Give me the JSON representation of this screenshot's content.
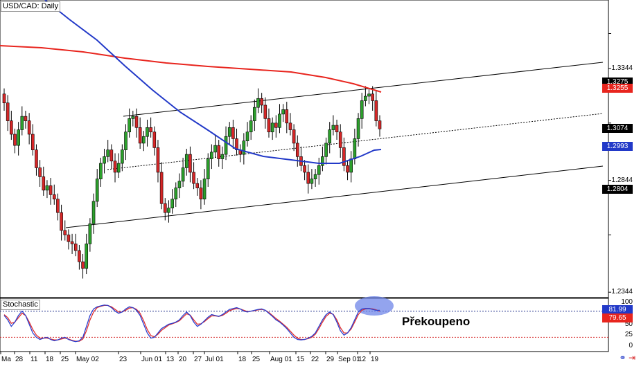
{
  "chart_title": "USD/CAD: Daily",
  "stoch_title": "Stochastic",
  "annotation": "Překoupeno",
  "colors": {
    "bull": "#2ca02c",
    "bear": "#d62728",
    "ma_red": "#e8251e",
    "ma_blue": "#2239c8",
    "stoch_red": "#e03030",
    "stoch_blue": "#2a3fd0",
    "highlight": "#6f86e8",
    "tag_black": "#000000",
    "tag_red": "#e8251e",
    "tag_blue": "#2239c8"
  },
  "chart_data": {
    "type": "candlestick",
    "price_axis_labels": [
      "1.3344",
      "1.2844",
      "1.2344"
    ],
    "price_tags": [
      {
        "value": "1.3275",
        "color": "#000000",
        "y_price": 1.3282
      },
      {
        "value": "1.3255",
        "color": "#e8251e",
        "y_price": 1.3255
      },
      {
        "value": "1.3074",
        "color": "#000000",
        "y_price": 1.3074
      },
      {
        "value": "1.2993",
        "color": "#2239c8",
        "y_price": 1.2993
      },
      {
        "value": "1.2804",
        "color": "#000000",
        "y_price": 1.2804
      }
    ],
    "x_tick_labels": [
      "Ma",
      "28",
      "11",
      "18",
      "25",
      "May 02",
      "23",
      "Jun 01",
      "13",
      "20",
      "27",
      "Jul 01",
      "18",
      "25",
      "Aug 01",
      "15",
      "22",
      "29",
      "Sep 01",
      "12",
      "19"
    ],
    "stoch_axis_labels": [
      "100",
      "75",
      "50",
      "25",
      "0"
    ],
    "stoch_tags": [
      {
        "value": "81.99",
        "color": "#2239c8"
      },
      {
        "value": "79.65",
        "color": "#e8251e"
      }
    ],
    "stoch_levels": {
      "overbought": 80,
      "oversold": 20
    },
    "closes": [
      1.319,
      1.311,
      1.305,
      1.3,
      1.307,
      1.313,
      1.311,
      1.305,
      1.298,
      1.29,
      1.286,
      1.28,
      1.282,
      1.278,
      1.276,
      1.27,
      1.262,
      1.26,
      1.257,
      1.256,
      1.253,
      1.248,
      1.245,
      1.256,
      1.265,
      1.275,
      1.285,
      1.292,
      1.295,
      1.298,
      1.293,
      1.288,
      1.292,
      1.298,
      1.306,
      1.312,
      1.313,
      1.308,
      1.301,
      1.304,
      1.308,
      1.306,
      1.299,
      1.288,
      1.274,
      1.27,
      1.272,
      1.276,
      1.281,
      1.284,
      1.29,
      1.296,
      1.288,
      1.283,
      1.281,
      1.276,
      1.285,
      1.294,
      1.297,
      1.3,
      1.294,
      1.296,
      1.304,
      1.308,
      1.303,
      1.298,
      1.296,
      1.302,
      1.306,
      1.311,
      1.317,
      1.321,
      1.318,
      1.312,
      1.306,
      1.31,
      1.308,
      1.314,
      1.316,
      1.31,
      1.307,
      1.301,
      1.295,
      1.291,
      1.288,
      1.283,
      1.285,
      1.287,
      1.291,
      1.295,
      1.301,
      1.307,
      1.309,
      1.306,
      1.299,
      1.291,
      1.288,
      1.294,
      1.303,
      1.312,
      1.32,
      1.322,
      1.323,
      1.32,
      1.311,
      1.3074
    ],
    "stoch_k": [
      70,
      60,
      45,
      55,
      70,
      80,
      70,
      50,
      30,
      20,
      15,
      18,
      20,
      15,
      12,
      14,
      18,
      20,
      15,
      12,
      10,
      12,
      20,
      45,
      70,
      85,
      90,
      92,
      94,
      93,
      88,
      80,
      75,
      78,
      85,
      90,
      88,
      82,
      70,
      50,
      30,
      18,
      20,
      30,
      40,
      45,
      50,
      52,
      55,
      60,
      70,
      78,
      70,
      55,
      45,
      50,
      58,
      66,
      72,
      70,
      68,
      72,
      78,
      84,
      86,
      88,
      85,
      80,
      78,
      80,
      82,
      84,
      85,
      82,
      75,
      68,
      60,
      55,
      48,
      40,
      30,
      20,
      15,
      14,
      15,
      18,
      22,
      30,
      45,
      60,
      72,
      78,
      72,
      55,
      35,
      25,
      30,
      42,
      60,
      78,
      85,
      86,
      86,
      84,
      82,
      81.99
    ],
    "stoch_d": [
      72,
      65,
      52,
      55,
      65,
      75,
      70,
      55,
      38,
      25,
      18,
      18,
      18,
      16,
      14,
      14,
      16,
      18,
      16,
      13,
      11,
      11,
      16,
      35,
      60,
      78,
      88,
      91,
      93,
      93,
      90,
      84,
      78,
      78,
      82,
      87,
      88,
      84,
      75,
      58,
      38,
      24,
      21,
      27,
      36,
      42,
      48,
      51,
      54,
      58,
      66,
      74,
      71,
      60,
      50,
      51,
      56,
      63,
      69,
      69,
      68,
      70,
      75,
      81,
      84,
      86,
      85,
      82,
      79,
      80,
      81,
      83,
      84,
      82,
      77,
      70,
      63,
      57,
      50,
      43,
      34,
      25,
      18,
      15,
      15,
      17,
      20,
      27,
      40,
      55,
      68,
      75,
      73,
      60,
      42,
      30,
      30,
      39,
      55,
      72,
      82,
      85,
      86,
      85,
      83,
      79.65
    ]
  }
}
